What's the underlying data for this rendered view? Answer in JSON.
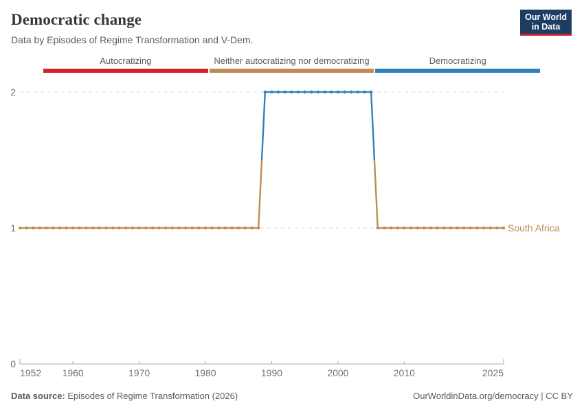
{
  "header": {
    "title": "Democratic change",
    "subtitle": "Data by Episodes of Regime Transformation and V-Dem.",
    "logo": {
      "line1": "Our World",
      "line2": "in Data"
    }
  },
  "legend": {
    "items": [
      {
        "label": "Autocratizing",
        "color": "#d0232e"
      },
      {
        "label": "Neither autocratizing nor democratizing",
        "color": "#bf8b54"
      },
      {
        "label": "Democratizing",
        "color": "#3182b8"
      }
    ]
  },
  "chart_data": {
    "type": "line",
    "style": "yearly step line with round markers",
    "title": "Democratic change",
    "xlabel": "",
    "ylabel": "",
    "xlim": [
      1952,
      2025
    ],
    "ylim": [
      0,
      2
    ],
    "x_ticks": [
      1952,
      1960,
      1970,
      1980,
      1990,
      2000,
      2010,
      2025
    ],
    "y_ticks": [
      0,
      1,
      2
    ],
    "grid": "horizontal dashed gridlines at y=1 and y=2",
    "legend_position": "top color bands",
    "series": [
      {
        "name": "South Africa",
        "label_color": "#bf8b54",
        "segments": [
          {
            "start_year": 1952,
            "end_year": 1988,
            "value": 1,
            "status": "Neither autocratizing nor democratizing",
            "color": "#bf8b54"
          },
          {
            "start_year": 1989,
            "end_year": 2005,
            "value": 2,
            "status": "Democratizing",
            "color": "#3182b8"
          },
          {
            "start_year": 2006,
            "end_year": 2025,
            "value": 1,
            "status": "Neither autocratizing nor democratizing",
            "color": "#bf8b54"
          }
        ]
      }
    ]
  },
  "footer": {
    "source_label": "Data source:",
    "source_text": " Episodes of Regime Transformation (2026)",
    "credit": "OurWorldinData.org/democracy | CC BY"
  },
  "colors": {
    "axis": "#a8a8a8",
    "tick_label": "#737373",
    "grid": "#dcdcdc"
  }
}
